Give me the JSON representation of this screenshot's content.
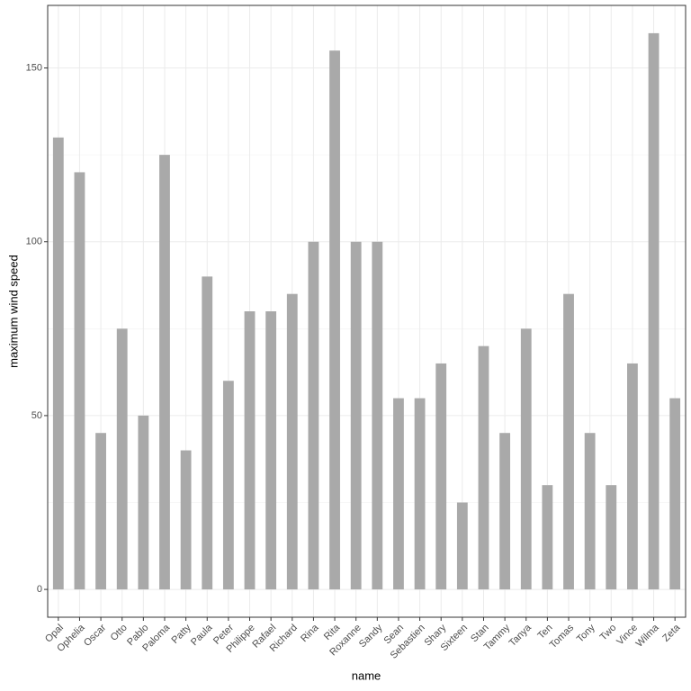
{
  "chart_data": {
    "type": "bar",
    "x_label": "name",
    "y_label": "maximum wind speed",
    "categories": [
      "Opal",
      "Ophelia",
      "Oscar",
      "Otto",
      "Pablo",
      "Paloma",
      "Patty",
      "Paula",
      "Peter",
      "Philippe",
      "Rafael",
      "Richard",
      "Rina",
      "Rita",
      "Roxanne",
      "Sandy",
      "Sean",
      "Sebastien",
      "Shary",
      "Sixteen",
      "Stan",
      "Tammy",
      "Tanya",
      "Ten",
      "Tomas",
      "Tony",
      "Two",
      "Vince",
      "Wilma",
      "Zeta"
    ],
    "values": [
      130,
      120,
      45,
      75,
      50,
      125,
      40,
      90,
      60,
      80,
      80,
      85,
      100,
      155,
      100,
      100,
      55,
      55,
      65,
      25,
      70,
      45,
      75,
      30,
      85,
      45,
      30,
      65,
      160,
      55
    ],
    "color": "#a9a9a9",
    "ylim": [
      -8,
      168
    ],
    "yticks": [
      0,
      50,
      100,
      150
    ],
    "minor_yticks": [
      25,
      75,
      125
    ],
    "grid": true
  }
}
